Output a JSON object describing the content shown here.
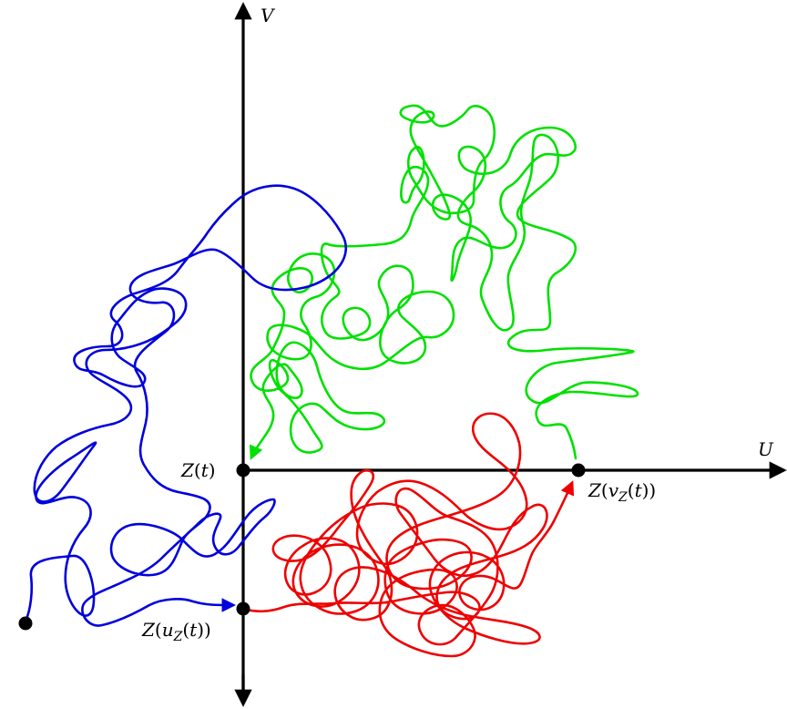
{
  "axes": {
    "u_label": "U",
    "v_label": "V"
  },
  "points": {
    "z_t": {
      "var": "Z",
      "arg": "t"
    },
    "z_v": {
      "var": "Z",
      "fn": "v",
      "sub": "Z",
      "arg": "t"
    },
    "z_u": {
      "var": "Z",
      "fn": "u",
      "sub": "Z",
      "arg": "t"
    }
  },
  "colors": {
    "axis": "#000000",
    "green_path": "#00e000",
    "blue_path": "#0000dd",
    "red_path": "#ee0000"
  }
}
